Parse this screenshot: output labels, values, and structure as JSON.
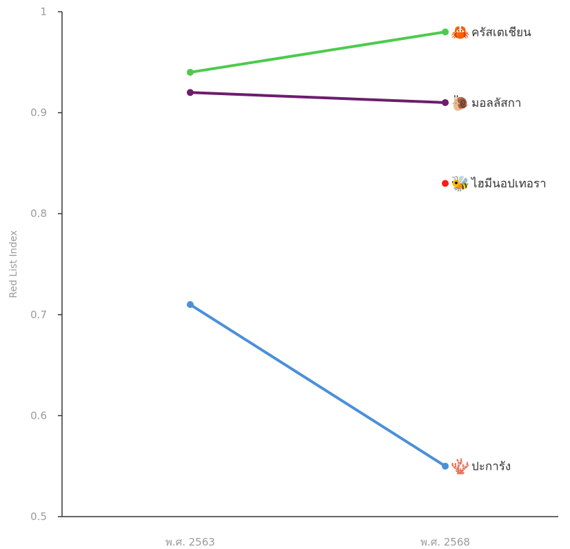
{
  "chart_data": {
    "type": "line",
    "ylabel": "Red List Index",
    "xlabel": "",
    "categories": [
      "พ.ศ. 2563",
      "พ.ศ. 2568"
    ],
    "ylim": [
      0.5,
      1.0
    ],
    "yticks": [
      0.5,
      0.6,
      0.7,
      0.8,
      0.9,
      1
    ],
    "ytick_labels": [
      "0.5",
      "0.6",
      "0.7",
      "0.8",
      "0.9",
      "1"
    ],
    "grid": false,
    "series": [
      {
        "name": "ครัสเตเชียน",
        "values": [
          0.94,
          0.98
        ],
        "color": "#4ccb4c",
        "icon": "crab-icon",
        "icon_color": "#2f9e44",
        "glyph": "🦀"
      },
      {
        "name": "มอลลัสกา",
        "values": [
          0.92,
          0.91
        ],
        "color": "#6d1c6e",
        "icon": "snail-shell-icon",
        "icon_color": "#a847b0",
        "glyph": "🐌"
      },
      {
        "name": "ไฮมีนอปเทอรา",
        "values": [
          null,
          0.83
        ],
        "color": "#ff1a1a",
        "icon": "bee-icon",
        "icon_color": "#ef7d2b",
        "glyph": "🐝"
      },
      {
        "name": "ปะการัง",
        "values": [
          0.71,
          0.55
        ],
        "color": "#4a90d9",
        "icon": "coral-icon",
        "icon_color": "#3b8ad9",
        "glyph": "🪸"
      }
    ]
  }
}
